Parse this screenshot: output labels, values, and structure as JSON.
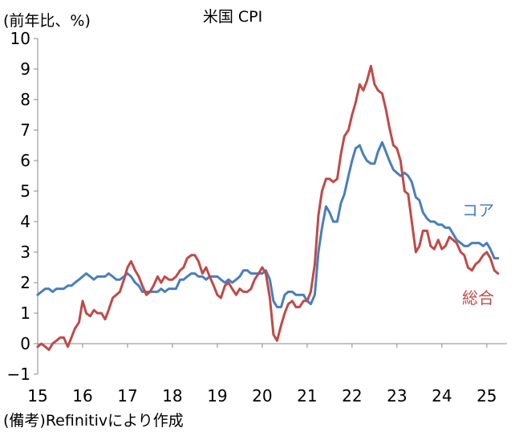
{
  "chart_data": {
    "type": "line",
    "title": "米国 CPI",
    "ylabel": "(前年比、%)",
    "source": "(備考)Refinitivにより作成",
    "xlim": [
      2015,
      2025.45
    ],
    "ylim": [
      -1,
      10
    ],
    "yticks": [
      "−1",
      "0",
      "1",
      "2",
      "3",
      "4",
      "5",
      "6",
      "7",
      "8",
      "9",
      "10"
    ],
    "xticks": [
      "15",
      "16",
      "17",
      "18",
      "19",
      "20",
      "21",
      "22",
      "23",
      "24",
      "25"
    ],
    "grid": false,
    "series": [
      {
        "name": "コア",
        "color": "#4a7ebb",
        "points": [
          [
            2015.0,
            1.6
          ],
          [
            2015.08,
            1.7
          ],
          [
            2015.17,
            1.8
          ],
          [
            2015.25,
            1.8
          ],
          [
            2015.33,
            1.7
          ],
          [
            2015.42,
            1.8
          ],
          [
            2015.5,
            1.8
          ],
          [
            2015.58,
            1.8
          ],
          [
            2015.67,
            1.9
          ],
          [
            2015.75,
            1.9
          ],
          [
            2015.83,
            2.0
          ],
          [
            2015.92,
            2.1
          ],
          [
            2016.0,
            2.2
          ],
          [
            2016.08,
            2.3
          ],
          [
            2016.17,
            2.2
          ],
          [
            2016.25,
            2.1
          ],
          [
            2016.33,
            2.2
          ],
          [
            2016.42,
            2.2
          ],
          [
            2016.5,
            2.2
          ],
          [
            2016.58,
            2.3
          ],
          [
            2016.67,
            2.2
          ],
          [
            2016.75,
            2.1
          ],
          [
            2016.83,
            2.1
          ],
          [
            2016.92,
            2.2
          ],
          [
            2017.0,
            2.3
          ],
          [
            2017.08,
            2.2
          ],
          [
            2017.17,
            2.0
          ],
          [
            2017.25,
            1.9
          ],
          [
            2017.33,
            1.7
          ],
          [
            2017.42,
            1.7
          ],
          [
            2017.5,
            1.7
          ],
          [
            2017.58,
            1.7
          ],
          [
            2017.67,
            1.7
          ],
          [
            2017.75,
            1.8
          ],
          [
            2017.83,
            1.7
          ],
          [
            2017.92,
            1.8
          ],
          [
            2018.0,
            1.8
          ],
          [
            2018.08,
            1.8
          ],
          [
            2018.17,
            2.1
          ],
          [
            2018.25,
            2.1
          ],
          [
            2018.33,
            2.2
          ],
          [
            2018.42,
            2.3
          ],
          [
            2018.5,
            2.3
          ],
          [
            2018.58,
            2.2
          ],
          [
            2018.67,
            2.2
          ],
          [
            2018.75,
            2.1
          ],
          [
            2018.83,
            2.2
          ],
          [
            2018.92,
            2.2
          ],
          [
            2019.0,
            2.2
          ],
          [
            2019.08,
            2.1
          ],
          [
            2019.17,
            2.0
          ],
          [
            2019.25,
            2.1
          ],
          [
            2019.33,
            2.0
          ],
          [
            2019.42,
            2.1
          ],
          [
            2019.5,
            2.2
          ],
          [
            2019.58,
            2.4
          ],
          [
            2019.67,
            2.4
          ],
          [
            2019.75,
            2.3
          ],
          [
            2019.83,
            2.3
          ],
          [
            2019.92,
            2.3
          ],
          [
            2020.0,
            2.3
          ],
          [
            2020.08,
            2.4
          ],
          [
            2020.17,
            2.1
          ],
          [
            2020.25,
            1.4
          ],
          [
            2020.33,
            1.2
          ],
          [
            2020.42,
            1.2
          ],
          [
            2020.5,
            1.6
          ],
          [
            2020.58,
            1.7
          ],
          [
            2020.67,
            1.7
          ],
          [
            2020.75,
            1.6
          ],
          [
            2020.83,
            1.6
          ],
          [
            2020.92,
            1.6
          ],
          [
            2021.0,
            1.4
          ],
          [
            2021.08,
            1.3
          ],
          [
            2021.17,
            1.6
          ],
          [
            2021.25,
            3.0
          ],
          [
            2021.33,
            3.8
          ],
          [
            2021.42,
            4.5
          ],
          [
            2021.5,
            4.3
          ],
          [
            2021.58,
            4.0
          ],
          [
            2021.67,
            4.0
          ],
          [
            2021.75,
            4.6
          ],
          [
            2021.83,
            4.9
          ],
          [
            2021.92,
            5.5
          ],
          [
            2022.0,
            6.0
          ],
          [
            2022.08,
            6.4
          ],
          [
            2022.17,
            6.5
          ],
          [
            2022.25,
            6.2
          ],
          [
            2022.33,
            6.0
          ],
          [
            2022.42,
            5.9
          ],
          [
            2022.5,
            5.9
          ],
          [
            2022.58,
            6.3
          ],
          [
            2022.67,
            6.6
          ],
          [
            2022.75,
            6.3
          ],
          [
            2022.83,
            6.0
          ],
          [
            2022.92,
            5.7
          ],
          [
            2023.0,
            5.6
          ],
          [
            2023.08,
            5.5
          ],
          [
            2023.17,
            5.6
          ],
          [
            2023.25,
            5.5
          ],
          [
            2023.33,
            5.3
          ],
          [
            2023.42,
            4.8
          ],
          [
            2023.5,
            4.7
          ],
          [
            2023.58,
            4.3
          ],
          [
            2023.67,
            4.1
          ],
          [
            2023.75,
            4.0
          ],
          [
            2023.83,
            4.0
          ],
          [
            2023.92,
            3.9
          ],
          [
            2024.0,
            3.9
          ],
          [
            2024.08,
            3.8
          ],
          [
            2024.17,
            3.8
          ],
          [
            2024.25,
            3.6
          ],
          [
            2024.33,
            3.4
          ],
          [
            2024.42,
            3.3
          ],
          [
            2024.5,
            3.2
          ],
          [
            2024.58,
            3.2
          ],
          [
            2024.67,
            3.3
          ],
          [
            2024.75,
            3.3
          ],
          [
            2024.83,
            3.3
          ],
          [
            2024.92,
            3.2
          ],
          [
            2025.0,
            3.3
          ],
          [
            2025.08,
            3.1
          ],
          [
            2025.17,
            2.8
          ],
          [
            2025.25,
            2.8
          ]
        ]
      },
      {
        "name": "総合",
        "color": "#be4b48",
        "points": [
          [
            2015.0,
            -0.1
          ],
          [
            2015.08,
            0.0
          ],
          [
            2015.17,
            -0.1
          ],
          [
            2015.25,
            -0.2
          ],
          [
            2015.33,
            0.0
          ],
          [
            2015.42,
            0.1
          ],
          [
            2015.5,
            0.2
          ],
          [
            2015.58,
            0.2
          ],
          [
            2015.67,
            -0.1
          ],
          [
            2015.75,
            0.2
          ],
          [
            2015.83,
            0.5
          ],
          [
            2015.92,
            0.7
          ],
          [
            2016.0,
            1.4
          ],
          [
            2016.08,
            1.0
          ],
          [
            2016.17,
            0.9
          ],
          [
            2016.25,
            1.1
          ],
          [
            2016.33,
            1.0
          ],
          [
            2016.42,
            1.0
          ],
          [
            2016.5,
            0.8
          ],
          [
            2016.58,
            1.1
          ],
          [
            2016.67,
            1.5
          ],
          [
            2016.75,
            1.6
          ],
          [
            2016.83,
            1.7
          ],
          [
            2016.92,
            2.1
          ],
          [
            2017.0,
            2.5
          ],
          [
            2017.08,
            2.7
          ],
          [
            2017.17,
            2.4
          ],
          [
            2017.25,
            2.2
          ],
          [
            2017.33,
            1.9
          ],
          [
            2017.42,
            1.6
          ],
          [
            2017.5,
            1.7
          ],
          [
            2017.58,
            1.9
          ],
          [
            2017.67,
            2.2
          ],
          [
            2017.75,
            2.0
          ],
          [
            2017.83,
            2.2
          ],
          [
            2017.92,
            2.1
          ],
          [
            2018.0,
            2.1
          ],
          [
            2018.08,
            2.2
          ],
          [
            2018.17,
            2.4
          ],
          [
            2018.25,
            2.5
          ],
          [
            2018.33,
            2.8
          ],
          [
            2018.42,
            2.9
          ],
          [
            2018.5,
            2.9
          ],
          [
            2018.58,
            2.7
          ],
          [
            2018.67,
            2.3
          ],
          [
            2018.75,
            2.5
          ],
          [
            2018.83,
            2.2
          ],
          [
            2018.92,
            1.9
          ],
          [
            2019.0,
            1.6
          ],
          [
            2019.08,
            1.5
          ],
          [
            2019.17,
            1.9
          ],
          [
            2019.25,
            2.0
          ],
          [
            2019.33,
            1.8
          ],
          [
            2019.42,
            1.6
          ],
          [
            2019.5,
            1.8
          ],
          [
            2019.58,
            1.7
          ],
          [
            2019.67,
            1.7
          ],
          [
            2019.75,
            1.8
          ],
          [
            2019.83,
            2.1
          ],
          [
            2019.92,
            2.3
          ],
          [
            2020.0,
            2.5
          ],
          [
            2020.08,
            2.3
          ],
          [
            2020.17,
            1.5
          ],
          [
            2020.25,
            0.3
          ],
          [
            2020.33,
            0.1
          ],
          [
            2020.42,
            0.6
          ],
          [
            2020.5,
            1.0
          ],
          [
            2020.58,
            1.3
          ],
          [
            2020.67,
            1.4
          ],
          [
            2020.75,
            1.2
          ],
          [
            2020.83,
            1.2
          ],
          [
            2020.92,
            1.4
          ],
          [
            2021.0,
            1.4
          ],
          [
            2021.08,
            1.7
          ],
          [
            2021.17,
            2.6
          ],
          [
            2021.25,
            4.2
          ],
          [
            2021.33,
            5.0
          ],
          [
            2021.42,
            5.4
          ],
          [
            2021.5,
            5.4
          ],
          [
            2021.58,
            5.3
          ],
          [
            2021.67,
            5.4
          ],
          [
            2021.75,
            6.2
          ],
          [
            2021.83,
            6.8
          ],
          [
            2021.92,
            7.0
          ],
          [
            2022.0,
            7.5
          ],
          [
            2022.08,
            7.9
          ],
          [
            2022.17,
            8.5
          ],
          [
            2022.25,
            8.3
          ],
          [
            2022.33,
            8.6
          ],
          [
            2022.42,
            9.1
          ],
          [
            2022.5,
            8.5
          ],
          [
            2022.58,
            8.3
          ],
          [
            2022.67,
            8.2
          ],
          [
            2022.75,
            7.7
          ],
          [
            2022.83,
            7.1
          ],
          [
            2022.92,
            6.5
          ],
          [
            2023.0,
            6.4
          ],
          [
            2023.08,
            6.0
          ],
          [
            2023.17,
            5.0
          ],
          [
            2023.25,
            4.9
          ],
          [
            2023.33,
            4.0
          ],
          [
            2023.42,
            3.0
          ],
          [
            2023.5,
            3.2
          ],
          [
            2023.58,
            3.7
          ],
          [
            2023.67,
            3.7
          ],
          [
            2023.75,
            3.2
          ],
          [
            2023.83,
            3.1
          ],
          [
            2023.92,
            3.4
          ],
          [
            2024.0,
            3.1
          ],
          [
            2024.08,
            3.2
          ],
          [
            2024.17,
            3.5
          ],
          [
            2024.25,
            3.4
          ],
          [
            2024.33,
            3.3
          ],
          [
            2024.42,
            3.0
          ],
          [
            2024.5,
            2.9
          ],
          [
            2024.58,
            2.5
          ],
          [
            2024.67,
            2.4
          ],
          [
            2024.75,
            2.6
          ],
          [
            2024.83,
            2.7
          ],
          [
            2024.92,
            2.9
          ],
          [
            2025.0,
            3.0
          ],
          [
            2025.08,
            2.8
          ],
          [
            2025.17,
            2.4
          ],
          [
            2025.25,
            2.3
          ]
        ]
      }
    ]
  }
}
